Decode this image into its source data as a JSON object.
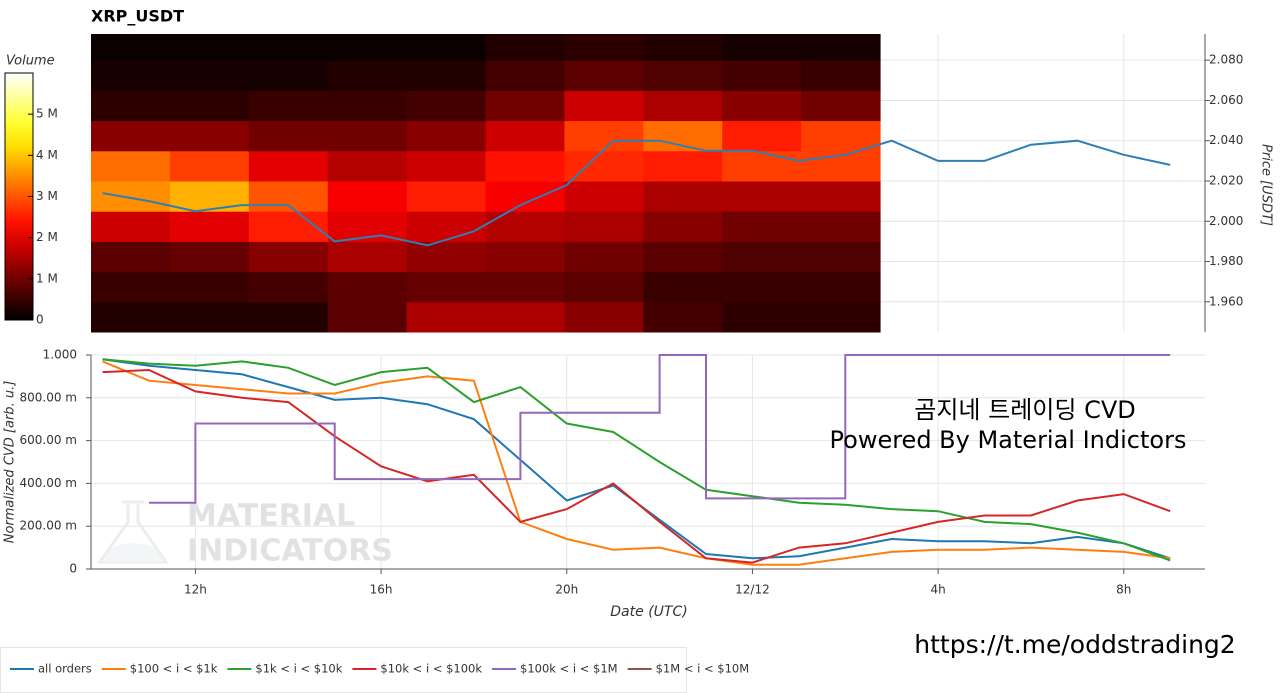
{
  "chart_data": [
    {
      "type": "heatmap",
      "title": "XRP_USDT",
      "colorbar_label": "Volume",
      "colormap": "hot",
      "x_edges": [
        9.75,
        11.45,
        13.15,
        14.85,
        16.55,
        18.25,
        19.95,
        21.65,
        23.35,
        25.05,
        26.75
      ],
      "y_edges": [
        1.945,
        1.96,
        1.975,
        1.99,
        2.005,
        2.02,
        2.035,
        2.05,
        2.065,
        2.08,
        2.095
      ],
      "z": [
        [
          300000,
          300000,
          300000,
          800000,
          1500000,
          1500000,
          1200000,
          600000,
          400000,
          400000
        ],
        [
          500000,
          500000,
          600000,
          800000,
          900000,
          900000,
          800000,
          500000,
          500000,
          500000
        ],
        [
          800000,
          900000,
          1200000,
          1500000,
          1300000,
          1200000,
          1000000,
          800000,
          700000,
          700000
        ],
        [
          1800000,
          2000000,
          2500000,
          2000000,
          1800000,
          1600000,
          1500000,
          1200000,
          1000000,
          1000000
        ],
        [
          3500000,
          3800000,
          3000000,
          2200000,
          2500000,
          2200000,
          1800000,
          1500000,
          1500000,
          1500000
        ],
        [
          3200000,
          2800000,
          2000000,
          1600000,
          1800000,
          2400000,
          2600000,
          2500000,
          2800000,
          2800000
        ],
        [
          1200000,
          1200000,
          1000000,
          1000000,
          1200000,
          1800000,
          2800000,
          3200000,
          2500000,
          2800000
        ],
        [
          400000,
          400000,
          500000,
          500000,
          600000,
          1000000,
          1800000,
          1500000,
          1200000,
          1000000
        ],
        [
          200000,
          200000,
          200000,
          300000,
          300000,
          600000,
          800000,
          700000,
          600000,
          500000
        ],
        [
          100000,
          100000,
          100000,
          100000,
          100000,
          300000,
          400000,
          300000,
          200000,
          200000
        ]
      ],
      "clim": [
        0,
        6000000
      ],
      "cticks": [
        0,
        {
          "value": 1000000,
          "label": "1 M"
        },
        {
          "value": 2000000,
          "label": "2 M"
        },
        {
          "value": 3000000,
          "label": "3 M"
        },
        {
          "value": 4000000,
          "label": "4 M"
        },
        {
          "value": 5000000,
          "label": "5 M"
        }
      ],
      "price": {
        "color": "#2f7fb5",
        "x": [
          10,
          11,
          12,
          13,
          14,
          15,
          16,
          17,
          18,
          19,
          20,
          21,
          22,
          23,
          24,
          25,
          26,
          27,
          28,
          29,
          30,
          31,
          32,
          33
        ],
        "values": [
          2.014,
          2.01,
          2.005,
          2.008,
          2.008,
          1.99,
          1.993,
          1.988,
          1.995,
          2.008,
          2.018,
          2.04,
          2.04,
          2.035,
          2.035,
          2.03,
          2.033,
          2.04,
          2.03,
          2.03,
          2.038,
          2.04,
          2.033,
          2.028
        ]
      },
      "xlim": [
        9.75,
        33.75
      ],
      "y2lim": [
        1.945,
        2.093
      ],
      "y2ticks": [
        {
          "value": 1.96,
          "label": "1.960"
        },
        {
          "value": 1.98,
          "label": "1.980"
        },
        {
          "value": 2,
          "label": "2.000"
        },
        {
          "value": 2.02,
          "label": "2.020"
        },
        {
          "value": 2.04,
          "label": "2.040"
        },
        {
          "value": 2.06,
          "label": "2.060"
        },
        {
          "value": 2.08,
          "label": "2.080"
        }
      ],
      "y2label": "Price [USDT]",
      "grid": true
    },
    {
      "type": "line",
      "xlabel": "Date (UTC)",
      "ylabel": "Normalized CVD [arb. u.]",
      "legend": "below",
      "grid": true,
      "x": [
        10,
        11,
        12,
        13,
        14,
        15,
        16,
        17,
        18,
        19,
        20,
        21,
        22,
        23,
        24,
        25,
        26,
        27,
        28,
        29,
        30,
        31,
        32,
        33
      ],
      "series": [
        {
          "name": "all orders",
          "color": "#1f77b4",
          "values": [
            0.98,
            0.95,
            0.93,
            0.91,
            0.85,
            0.79,
            0.8,
            0.77,
            0.7,
            0.51,
            0.32,
            0.39,
            0.23,
            0.07,
            0.05,
            0.06,
            0.1,
            0.14,
            0.13,
            0.13,
            0.12,
            0.15,
            0.12,
            0.05
          ]
        },
        {
          "name": "$100 < i < $1k",
          "color": "#ff7f0e",
          "values": [
            0.97,
            0.88,
            0.86,
            0.84,
            0.82,
            0.82,
            0.87,
            0.9,
            0.88,
            0.22,
            0.14,
            0.09,
            0.1,
            0.05,
            0.02,
            0.02,
            0.05,
            0.08,
            0.09,
            0.09,
            0.1,
            0.09,
            0.08,
            0.05
          ]
        },
        {
          "name": "$1k < i < $10k",
          "color": "#2ca02c",
          "values": [
            0.98,
            0.96,
            0.95,
            0.97,
            0.94,
            0.86,
            0.92,
            0.94,
            0.78,
            0.85,
            0.68,
            0.64,
            0.5,
            0.37,
            0.34,
            0.31,
            0.3,
            0.28,
            0.27,
            0.22,
            0.21,
            0.17,
            0.12,
            0.04
          ]
        },
        {
          "name": "$10k < i < $100k",
          "color": "#d62728",
          "values": [
            0.92,
            0.93,
            0.83,
            0.8,
            0.78,
            0.62,
            0.48,
            0.41,
            0.44,
            0.22,
            0.28,
            0.4,
            0.22,
            0.05,
            0.03,
            0.1,
            0.12,
            0.17,
            0.22,
            0.25,
            0.25,
            0.32,
            0.35,
            0.27
          ]
        },
        {
          "name": "$100k < i < $1M",
          "color": "#9467bd",
          "step": "after",
          "values": [
            null,
            0.31,
            0.68,
            0.68,
            0.68,
            0.42,
            0.42,
            0.42,
            0.42,
            0.73,
            0.73,
            0.73,
            1,
            0.33,
            0.33,
            0.33,
            1,
            1,
            1,
            1,
            1,
            1,
            1,
            1
          ]
        },
        {
          "name": "$1M < i < $10M",
          "color": "#8c564b",
          "values": [
            null,
            null,
            null,
            null,
            null,
            null,
            null,
            null,
            null,
            null,
            null,
            null,
            null,
            null,
            null,
            null,
            null,
            null,
            null,
            null,
            null,
            null,
            null,
            null
          ]
        }
      ],
      "xlim": [
        9.75,
        33.75
      ],
      "xticks": [
        {
          "value": 12,
          "label": "12h"
        },
        {
          "value": 16,
          "label": "16h"
        },
        {
          "value": 20,
          "label": "20h"
        },
        {
          "value": 24,
          "label": "12/12"
        },
        {
          "value": 28,
          "label": "4h"
        },
        {
          "value": 32,
          "label": "8h"
        }
      ],
      "ylim": [
        0,
        1
      ],
      "yticks": [
        0,
        {
          "value": 0.2,
          "label": "200.00 m"
        },
        {
          "value": 0.4,
          "label": "400.00 m"
        },
        {
          "value": 0.6,
          "label": "600.00 m"
        },
        {
          "value": 0.8,
          "label": "800.00 m"
        },
        {
          "value": 1,
          "label": "1.000"
        }
      ],
      "annotations": [
        "곰지네 트레이딩 CVD",
        "Powered By Material Indictors"
      ],
      "watermark": [
        "MATERIAL",
        "INDICATORS"
      ]
    }
  ],
  "footer_link": "https://t.me/oddstrading2"
}
